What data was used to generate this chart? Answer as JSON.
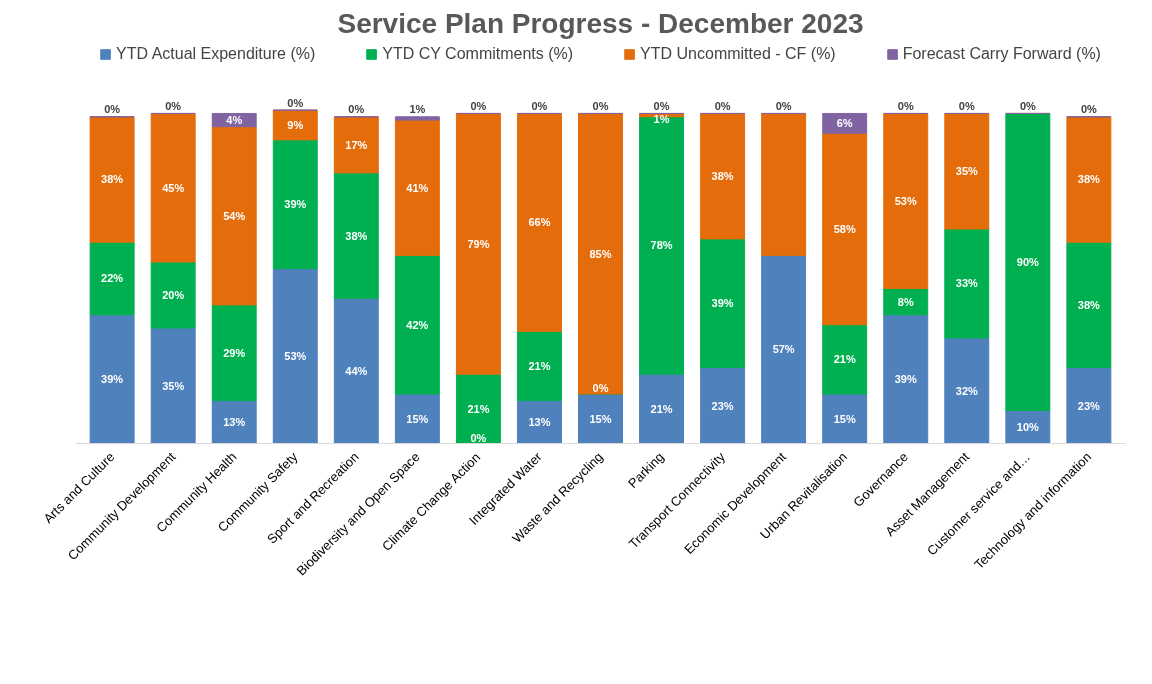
{
  "chart_data": {
    "type": "bar",
    "stacked": true,
    "title": "Service Plan Progress - December 2023",
    "legend": "top",
    "grid": false,
    "tick_labels": "x",
    "categories": [
      "Arts and Culture",
      "Community Development",
      "Community Health",
      "Community Safety",
      "Sport and Recreation",
      "Biodiversity and Open Space",
      "Climate Change Action",
      "Integrated Water",
      "Waste and Recycling",
      "Parking",
      "Transport Connectivity",
      "Economic Development",
      "Urban Revitalisation",
      "Governance",
      "Asset Management",
      "Customer service and…",
      "Technology and information"
    ],
    "series": [
      {
        "name": "YTD Actual Expenditure (%)",
        "color": "#4f81bd",
        "values": [
          39,
          35,
          13,
          53,
          44,
          15,
          0,
          13,
          15,
          21,
          23,
          57,
          15,
          39,
          32,
          10,
          23
        ],
        "value_labels": [
          "39%",
          "35%",
          "13%",
          "53%",
          "44%",
          "15%",
          "0%",
          "13%",
          "15%",
          "21%",
          "23%",
          "57%",
          "15%",
          "39%",
          "32%",
          "10%",
          "23%"
        ]
      },
      {
        "name": "YTD CY Commitments (%)",
        "color": "#00b050",
        "values": [
          22,
          20,
          29,
          39,
          38,
          42,
          21,
          21,
          0,
          78,
          39,
          0,
          21,
          8,
          33,
          90,
          38
        ],
        "value_labels": [
          "22%",
          "20%",
          "29%",
          "39%",
          "38%",
          "42%",
          "21%",
          "21%",
          "0%",
          "78%",
          "39%",
          null,
          "21%",
          "8%",
          "33%",
          "90%",
          "38%"
        ]
      },
      {
        "name": "YTD Uncommitted - CF (%)",
        "color": "#e46c0a",
        "values": [
          38,
          45,
          54,
          9,
          17,
          41,
          79,
          66,
          85,
          1,
          38,
          43,
          58,
          53,
          35,
          0,
          38
        ],
        "value_labels": [
          "38%",
          "45%",
          "54%",
          "9%",
          "17%",
          "41%",
          "79%",
          "66%",
          "85%",
          "1%",
          "38%",
          null,
          "58%",
          "53%",
          "35%",
          null,
          "38%"
        ]
      },
      {
        "name": "Forecast Carry Forward (%)",
        "color": "#8064a2",
        "values": [
          0,
          0,
          4,
          0,
          0,
          1,
          0,
          0,
          0,
          0,
          0,
          0,
          6,
          0,
          0,
          0,
          0
        ],
        "value_labels": [
          "0%",
          "0%",
          "4%",
          "0%",
          "0%",
          "1%",
          "0%",
          "0%",
          "0%",
          "0%",
          "0%",
          "0%",
          "6%",
          "0%",
          "0%",
          "0%",
          "0%"
        ]
      }
    ]
  }
}
